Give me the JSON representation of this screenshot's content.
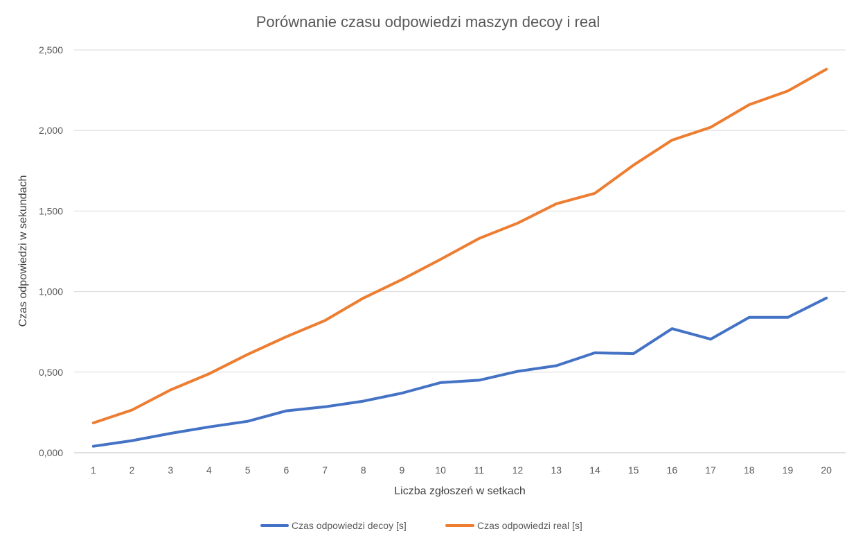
{
  "chart_data": {
    "type": "line",
    "title": "Porównanie czasu odpowiedzi maszyn decoy i real",
    "xlabel": "Liczba zgłoszeń w setkach",
    "ylabel": "Czas odpowiedzi w sekundach",
    "categories": [
      "1",
      "2",
      "3",
      "4",
      "5",
      "6",
      "7",
      "8",
      "9",
      "10",
      "11",
      "12",
      "13",
      "14",
      "15",
      "16",
      "17",
      "18",
      "19",
      "20"
    ],
    "ylim": [
      0,
      2.5
    ],
    "yticks": [
      0,
      0.5,
      1.0,
      1.5,
      2.0,
      2.5
    ],
    "ytick_labels": [
      "0,000",
      "0,500",
      "1,000",
      "1,500",
      "2,000",
      "2,500"
    ],
    "grid": true,
    "legend_position": "bottom",
    "series": [
      {
        "name": "Czas odpowiedzi decoy [s]",
        "color": "#4472c4",
        "values": [
          0.04,
          0.075,
          0.12,
          0.16,
          0.195,
          0.26,
          0.285,
          0.32,
          0.37,
          0.435,
          0.45,
          0.505,
          0.54,
          0.62,
          0.615,
          0.77,
          0.705,
          0.84,
          0.84,
          0.96
        ]
      },
      {
        "name": "Czas odpowiedzi real [s]",
        "color": "#ed7d31",
        "values": [
          0.185,
          0.265,
          0.39,
          0.49,
          0.61,
          0.72,
          0.82,
          0.96,
          1.075,
          1.2,
          1.33,
          1.425,
          1.545,
          1.61,
          1.785,
          1.94,
          2.02,
          2.16,
          2.245,
          2.38
        ]
      }
    ]
  }
}
